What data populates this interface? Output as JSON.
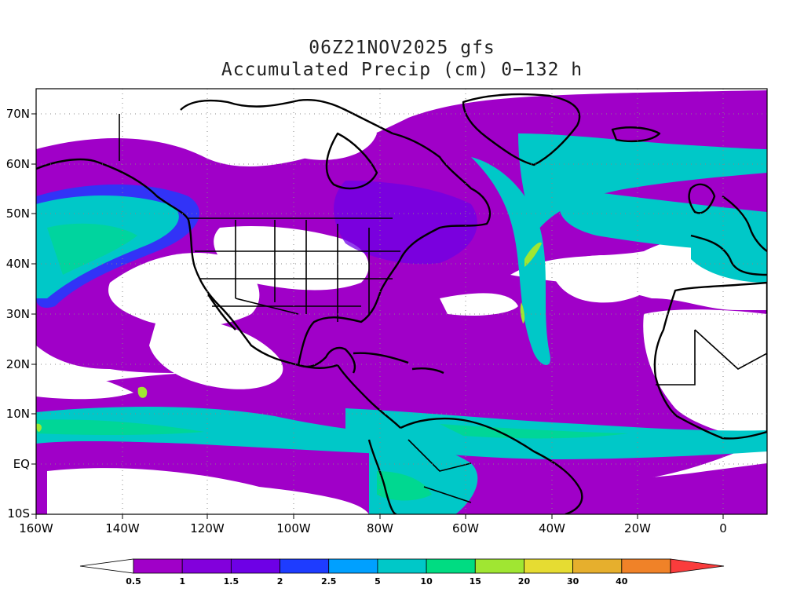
{
  "title": {
    "line1": "06Z21NOV2025 gfs",
    "line2": "Accumulated Precip (cm) 0−132 h"
  },
  "map": {
    "projection": "lat-lon",
    "lon_range": [
      -160,
      10
    ],
    "lat_range": [
      -10,
      75
    ],
    "grid": true,
    "lat_ticks": [
      "10S",
      "EQ",
      "10N",
      "20N",
      "30N",
      "40N",
      "50N",
      "60N",
      "70N"
    ],
    "lon_ticks": [
      "160W",
      "140W",
      "120W",
      "100W",
      "80W",
      "60W",
      "40W",
      "20W",
      "0"
    ]
  },
  "colorbar": {
    "labels": [
      "0.5",
      "1",
      "1.5",
      "2",
      "2.5",
      "5",
      "10",
      "15",
      "20",
      "30",
      "40"
    ],
    "colors": [
      "#ffffff",
      "#a000c8",
      "#8200dc",
      "#6e00e6",
      "#1e3cff",
      "#00a0ff",
      "#00c8c8",
      "#00dc82",
      "#a0e632",
      "#e6dc32",
      "#e6af2d",
      "#f08228",
      "#fa3c3c"
    ]
  }
}
